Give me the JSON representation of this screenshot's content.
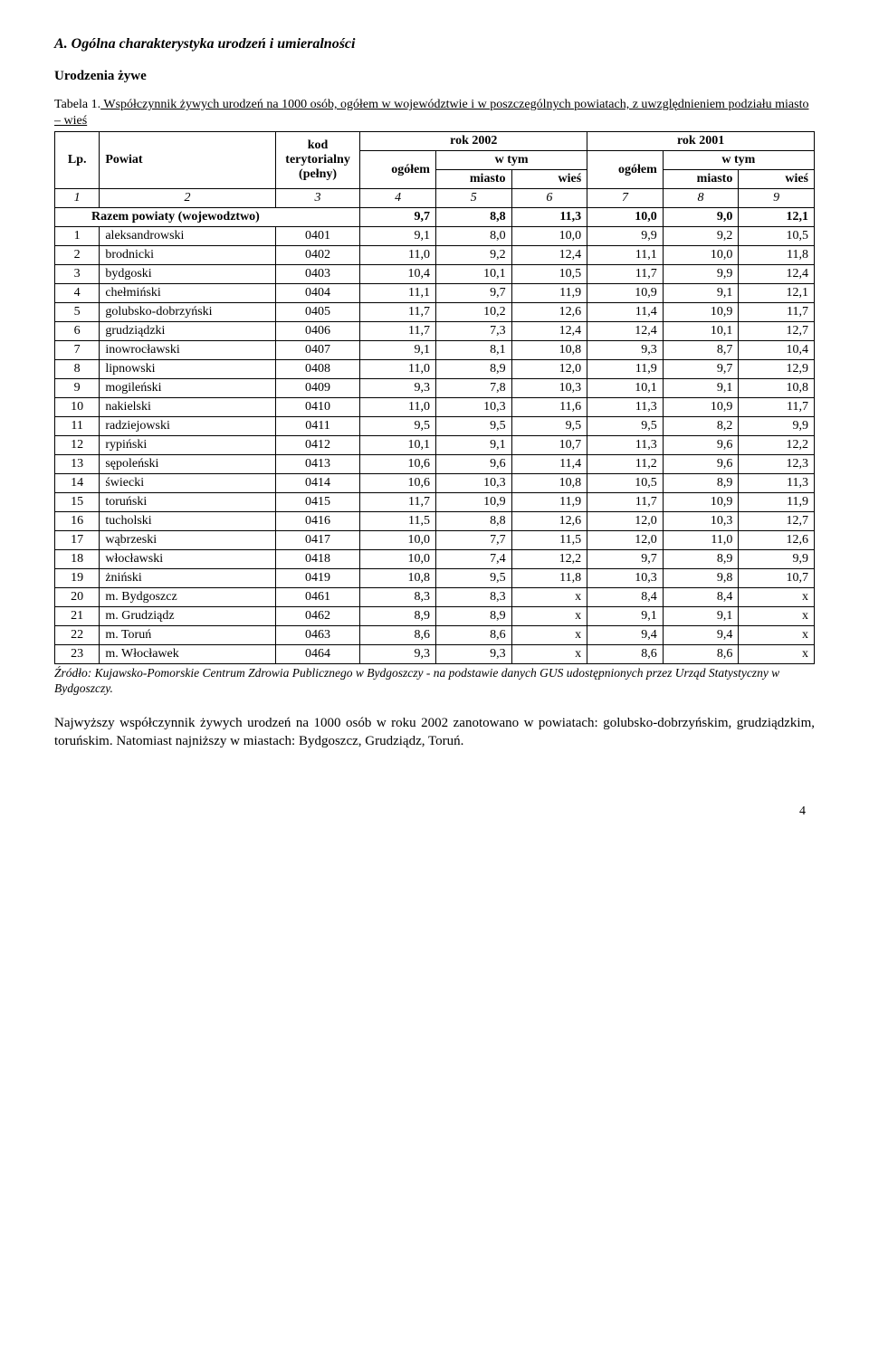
{
  "section_title": "A.  Ogólna charakterystyka urodzeń i umieralności",
  "sub_title": "Urodzenia żywe",
  "table_caption_prefix": "Tabela 1.",
  "table_caption_text": " Współczynnik żywych urodzeń na 1000 osób, ogółem w województwie i w poszczególnych powiatach, z uwzględnieniem podziału miasto – wieś",
  "header": {
    "lp": "Lp.",
    "powiat": "Powiat",
    "kod": "kod terytorialny (pełny)",
    "rok2002": "rok 2002",
    "rok2001": "rok 2001",
    "ogolem": "ogółem",
    "wtym": "w tym",
    "miasto": "miasto",
    "wies": "wieś"
  },
  "colnums": [
    "1",
    "2",
    "3",
    "4",
    "5",
    "6",
    "7",
    "8",
    "9"
  ],
  "razem_label": "Razem powiaty (wojewodztwo)",
  "razem": [
    "9,7",
    "8,8",
    "11,3",
    "10,0",
    "9,0",
    "12,1"
  ],
  "rows": [
    [
      "1",
      "aleksandrowski",
      "0401",
      "9,1",
      "8,0",
      "10,0",
      "9,9",
      "9,2",
      "10,5"
    ],
    [
      "2",
      "brodnicki",
      "0402",
      "11,0",
      "9,2",
      "12,4",
      "11,1",
      "10,0",
      "11,8"
    ],
    [
      "3",
      "bydgoski",
      "0403",
      "10,4",
      "10,1",
      "10,5",
      "11,7",
      "9,9",
      "12,4"
    ],
    [
      "4",
      "chełmiński",
      "0404",
      "11,1",
      "9,7",
      "11,9",
      "10,9",
      "9,1",
      "12,1"
    ],
    [
      "5",
      "golubsko-dobrzyński",
      "0405",
      "11,7",
      "10,2",
      "12,6",
      "11,4",
      "10,9",
      "11,7"
    ],
    [
      "6",
      "grudziądzki",
      "0406",
      "11,7",
      "7,3",
      "12,4",
      "12,4",
      "10,1",
      "12,7"
    ],
    [
      "7",
      "inowrocławski",
      "0407",
      "9,1",
      "8,1",
      "10,8",
      "9,3",
      "8,7",
      "10,4"
    ],
    [
      "8",
      "lipnowski",
      "0408",
      "11,0",
      "8,9",
      "12,0",
      "11,9",
      "9,7",
      "12,9"
    ],
    [
      "9",
      "mogileński",
      "0409",
      "9,3",
      "7,8",
      "10,3",
      "10,1",
      "9,1",
      "10,8"
    ],
    [
      "10",
      "nakielski",
      "0410",
      "11,0",
      "10,3",
      "11,6",
      "11,3",
      "10,9",
      "11,7"
    ],
    [
      "11",
      "radziejowski",
      "0411",
      "9,5",
      "9,5",
      "9,5",
      "9,5",
      "8,2",
      "9,9"
    ],
    [
      "12",
      "rypiński",
      "0412",
      "10,1",
      "9,1",
      "10,7",
      "11,3",
      "9,6",
      "12,2"
    ],
    [
      "13",
      "sępoleński",
      "0413",
      "10,6",
      "9,6",
      "11,4",
      "11,2",
      "9,6",
      "12,3"
    ],
    [
      "14",
      "świecki",
      "0414",
      "10,6",
      "10,3",
      "10,8",
      "10,5",
      "8,9",
      "11,3"
    ],
    [
      "15",
      "toruński",
      "0415",
      "11,7",
      "10,9",
      "11,9",
      "11,7",
      "10,9",
      "11,9"
    ],
    [
      "16",
      "tucholski",
      "0416",
      "11,5",
      "8,8",
      "12,6",
      "12,0",
      "10,3",
      "12,7"
    ],
    [
      "17",
      "wąbrzeski",
      "0417",
      "10,0",
      "7,7",
      "11,5",
      "12,0",
      "11,0",
      "12,6"
    ],
    [
      "18",
      "włocławski",
      "0418",
      "10,0",
      "7,4",
      "12,2",
      "9,7",
      "8,9",
      "9,9"
    ],
    [
      "19",
      "żniński",
      "0419",
      "10,8",
      "9,5",
      "11,8",
      "10,3",
      "9,8",
      "10,7"
    ],
    [
      "20",
      "m. Bydgoszcz",
      "0461",
      "8,3",
      "8,3",
      "x",
      "8,4",
      "8,4",
      "x"
    ],
    [
      "21",
      "m. Grudziądz",
      "0462",
      "8,9",
      "8,9",
      "x",
      "9,1",
      "9,1",
      "x"
    ],
    [
      "22",
      "m. Toruń",
      "0463",
      "8,6",
      "8,6",
      "x",
      "9,4",
      "9,4",
      "x"
    ],
    [
      "23",
      "m. Włocławek",
      "0464",
      "9,3",
      "9,3",
      "x",
      "8,6",
      "8,6",
      "x"
    ]
  ],
  "source": "Źródło: Kujawsko-Pomorskie Centrum Zdrowia Publicznego w Bydgoszczy - na podstawie danych GUS udostępnionych przez Urząd Statystyczny w Bydgoszczy.",
  "paragraph": "Najwyższy współczynnik żywych urodzeń na 1000 osób w roku 2002 zanotowano w powiatach: golubsko-dobrzyńskim, grudziądzkim, toruńskim. Natomiast najniższy w miastach: Bydgoszcz, Grudziądz, Toruń.",
  "page_number": "4"
}
